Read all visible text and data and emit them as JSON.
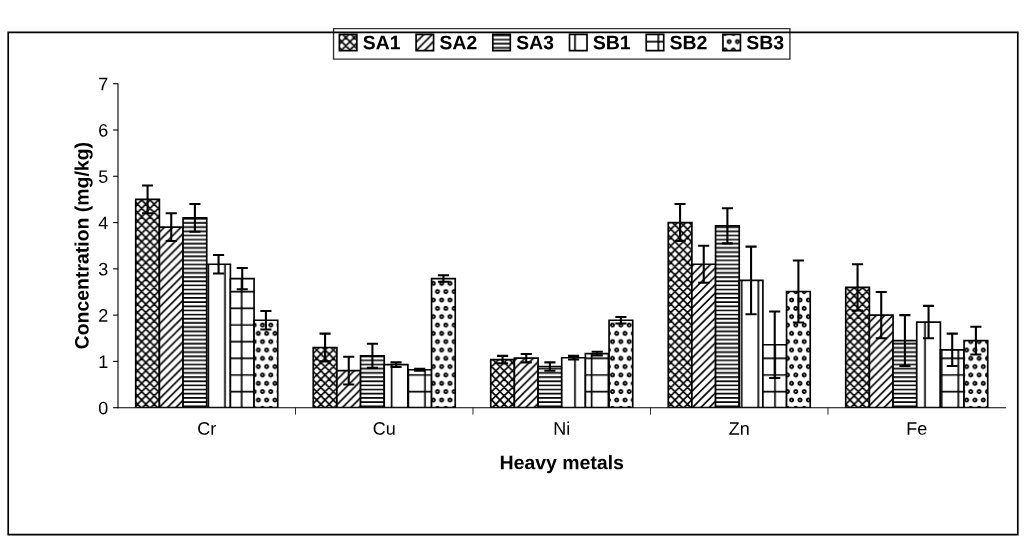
{
  "chart_data": {
    "type": "bar",
    "xlabel": "Heavy metals",
    "ylabel": "Concentration (mg/kg)",
    "categories": [
      "Cr",
      "Cu",
      "Ni",
      "Zn",
      "Fe"
    ],
    "series": [
      {
        "name": "SA1",
        "color": "#000000",
        "values": [
          4.5,
          1.3,
          1.04,
          4.0,
          2.6
        ],
        "errors": [
          0.3,
          0.3,
          0.08,
          0.4,
          0.5
        ]
      },
      {
        "name": "SA2",
        "color": "#000000",
        "values": [
          3.9,
          0.8,
          1.07,
          3.1,
          2.0
        ],
        "errors": [
          0.3,
          0.3,
          0.09,
          0.4,
          0.5
        ]
      },
      {
        "name": "SA3",
        "color": "#000000",
        "values": [
          4.1,
          1.12,
          0.89,
          3.93,
          1.45
        ],
        "errors": [
          0.3,
          0.26,
          0.09,
          0.38,
          0.55
        ]
      },
      {
        "name": "SB1",
        "color": "#000000",
        "values": [
          3.1,
          0.93,
          1.08,
          2.75,
          1.85
        ],
        "errors": [
          0.2,
          0.05,
          0.04,
          0.73,
          0.35
        ]
      },
      {
        "name": "SB2",
        "color": "#000000",
        "values": [
          2.79,
          0.82,
          1.17,
          1.36,
          1.25
        ],
        "errors": [
          0.23,
          0.02,
          0.04,
          0.72,
          0.35
        ]
      },
      {
        "name": "SB3",
        "color": "#000000",
        "values": [
          1.89,
          2.79,
          1.89,
          2.51,
          1.45
        ],
        "errors": [
          0.2,
          0.07,
          0.07,
          0.67,
          0.3
        ]
      }
    ],
    "ylim": [
      0,
      7
    ],
    "yticks": [
      0,
      1,
      2,
      3,
      4,
      5,
      6,
      7
    ],
    "grid": false,
    "legend": "top"
  }
}
